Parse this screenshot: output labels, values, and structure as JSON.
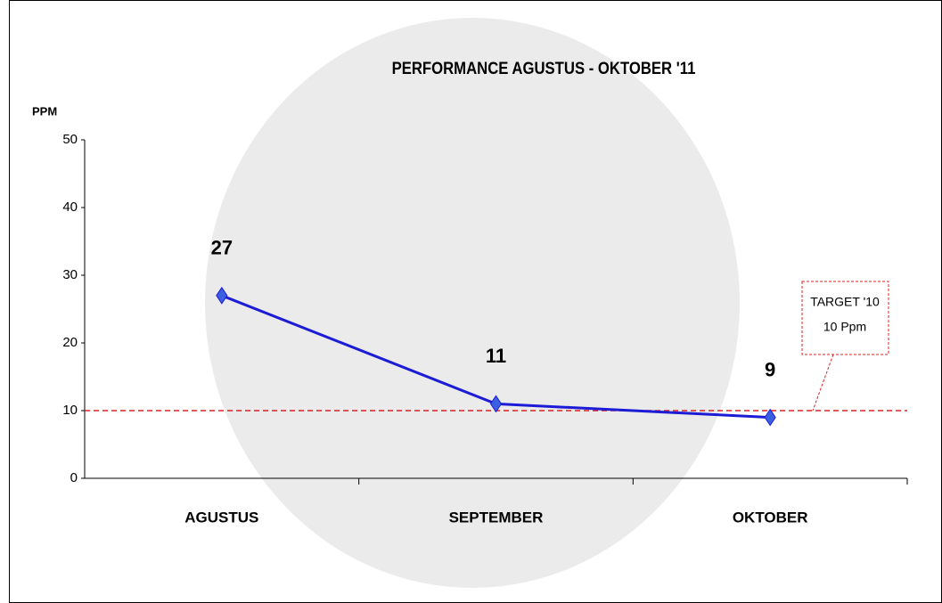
{
  "chart_data": {
    "type": "line",
    "title": "PERFORMANCE AGUSTUS - OKTOBER '11",
    "y_label": "PPM",
    "categories": [
      "AGUSTUS",
      "SEPTEMBER",
      "OKTOBER"
    ],
    "series": [
      {
        "color": "#1c1cd6",
        "marker_color": "#3a5fe0",
        "values": [
          27,
          11,
          9
        ]
      }
    ],
    "ylim": [
      0,
      50
    ],
    "yticks": [
      0,
      10,
      20,
      30,
      40,
      50
    ],
    "grid": false,
    "target": {
      "value": 10,
      "name": "TARGET '10",
      "label": "10 Ppm",
      "color": "#e02020"
    }
  }
}
